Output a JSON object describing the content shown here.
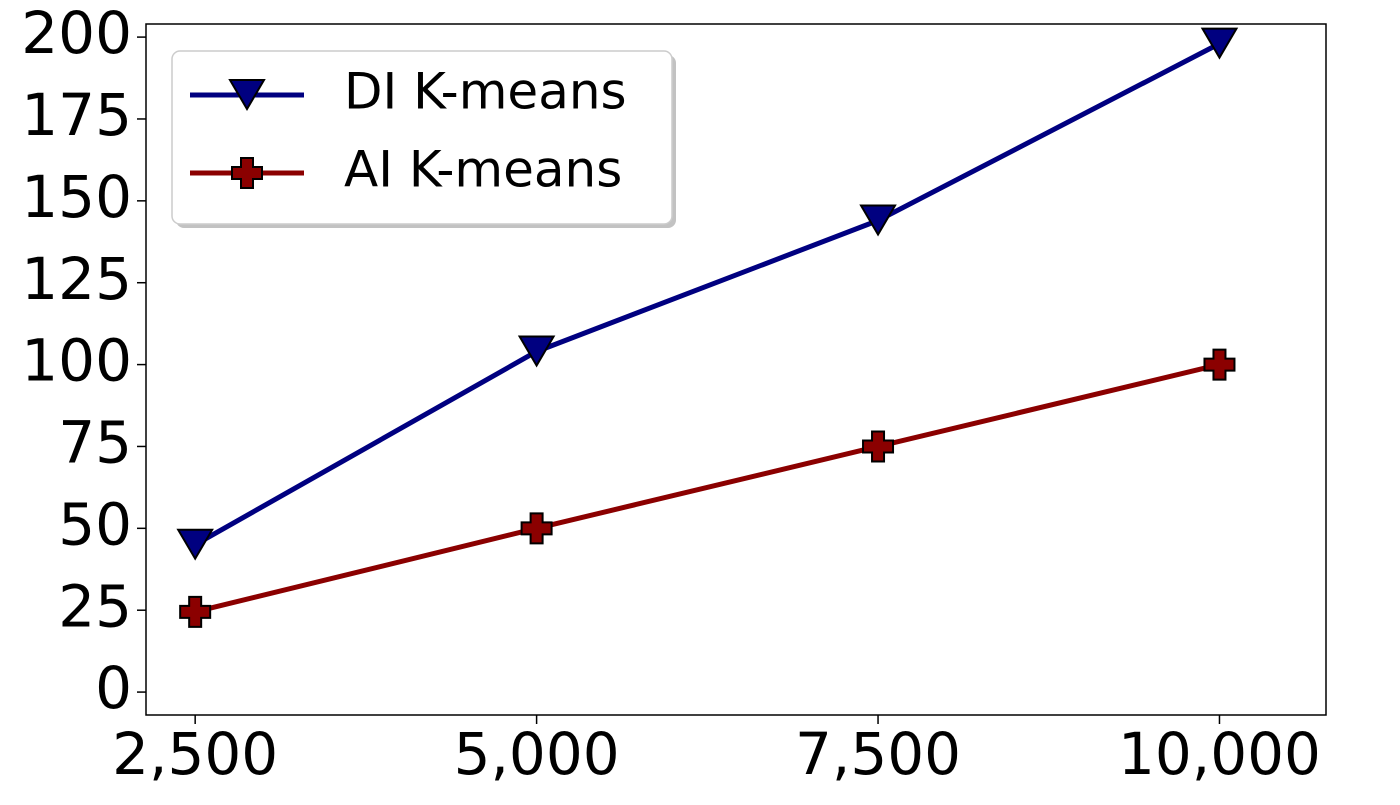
{
  "chart_data": {
    "type": "line",
    "title": "",
    "xlabel": "",
    "ylabel": "",
    "x": [
      2500,
      5000,
      7500,
      10000
    ],
    "x_tick_labels": [
      "2,500",
      "5,000",
      "7,500",
      "10,000"
    ],
    "y_ticks": [
      0,
      25,
      50,
      75,
      100,
      125,
      150,
      175,
      200
    ],
    "y_tick_labels": [
      "0",
      "25",
      "50",
      "75",
      "100",
      "125",
      "150",
      "175",
      "200"
    ],
    "xlim": [
      2140,
      10780
    ],
    "ylim": [
      -7,
      204
    ],
    "grid": false,
    "legend_position": "upper-left",
    "series": [
      {
        "name": "DI K-means",
        "values": [
          45,
          104,
          144,
          198
        ],
        "color": "#000080",
        "marker": "triangle-down"
      },
      {
        "name": "AI K-means",
        "values": [
          24.5,
          50,
          75,
          100
        ],
        "color": "#8b0000",
        "marker": "plus"
      }
    ]
  }
}
